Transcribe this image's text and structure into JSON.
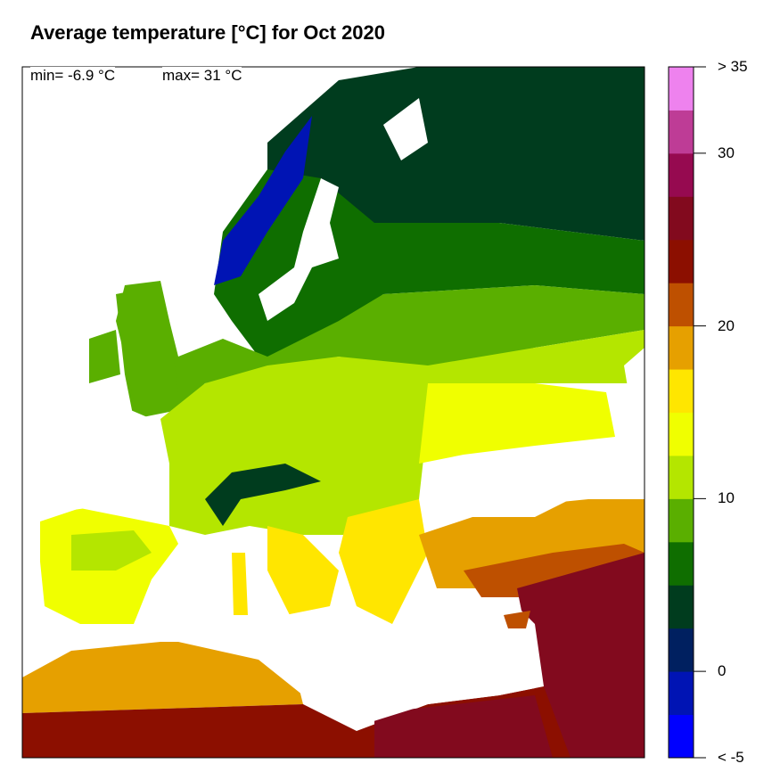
{
  "title": "Average temperature [°C] for Oct 2020",
  "stats": {
    "min": "min= -6.9 °C",
    "max": "max= 31 °C"
  },
  "legend": {
    "bins": [
      {
        "from": -10,
        "to": -5,
        "color": "#0000ff"
      },
      {
        "from": -5,
        "to": -2.5,
        "color": "#0014b4"
      },
      {
        "from": -2.5,
        "to": 0,
        "color": "#002060"
      },
      {
        "from": 0,
        "to": 2.5,
        "color": "#003c1e"
      },
      {
        "from": 2.5,
        "to": 5,
        "color": "#0f6e00"
      },
      {
        "from": 5,
        "to": 7.5,
        "color": "#5aaf00"
      },
      {
        "from": 7.5,
        "to": 10,
        "color": "#b4e600"
      },
      {
        "from": 10,
        "to": 12.5,
        "color": "#f0ff00"
      },
      {
        "from": 12.5,
        "to": 15,
        "color": "#ffe600"
      },
      {
        "from": 15,
        "to": 17.5,
        "color": "#e6a000"
      },
      {
        "from": 17.5,
        "to": 20,
        "color": "#be5000"
      },
      {
        "from": 20,
        "to": 22.5,
        "color": "#8c0f00"
      },
      {
        "from": 22.5,
        "to": 25,
        "color": "#820a1e"
      },
      {
        "from": 25,
        "to": 27.5,
        "color": "#960a50"
      },
      {
        "from": 27.5,
        "to": 30,
        "color": "#be3c96"
      },
      {
        "from": 30,
        "to": 35,
        "color": "#ee82ee"
      }
    ],
    "tick_labels": [
      "< -5",
      "0",
      "10",
      "20",
      "30",
      "> 35"
    ]
  }
}
